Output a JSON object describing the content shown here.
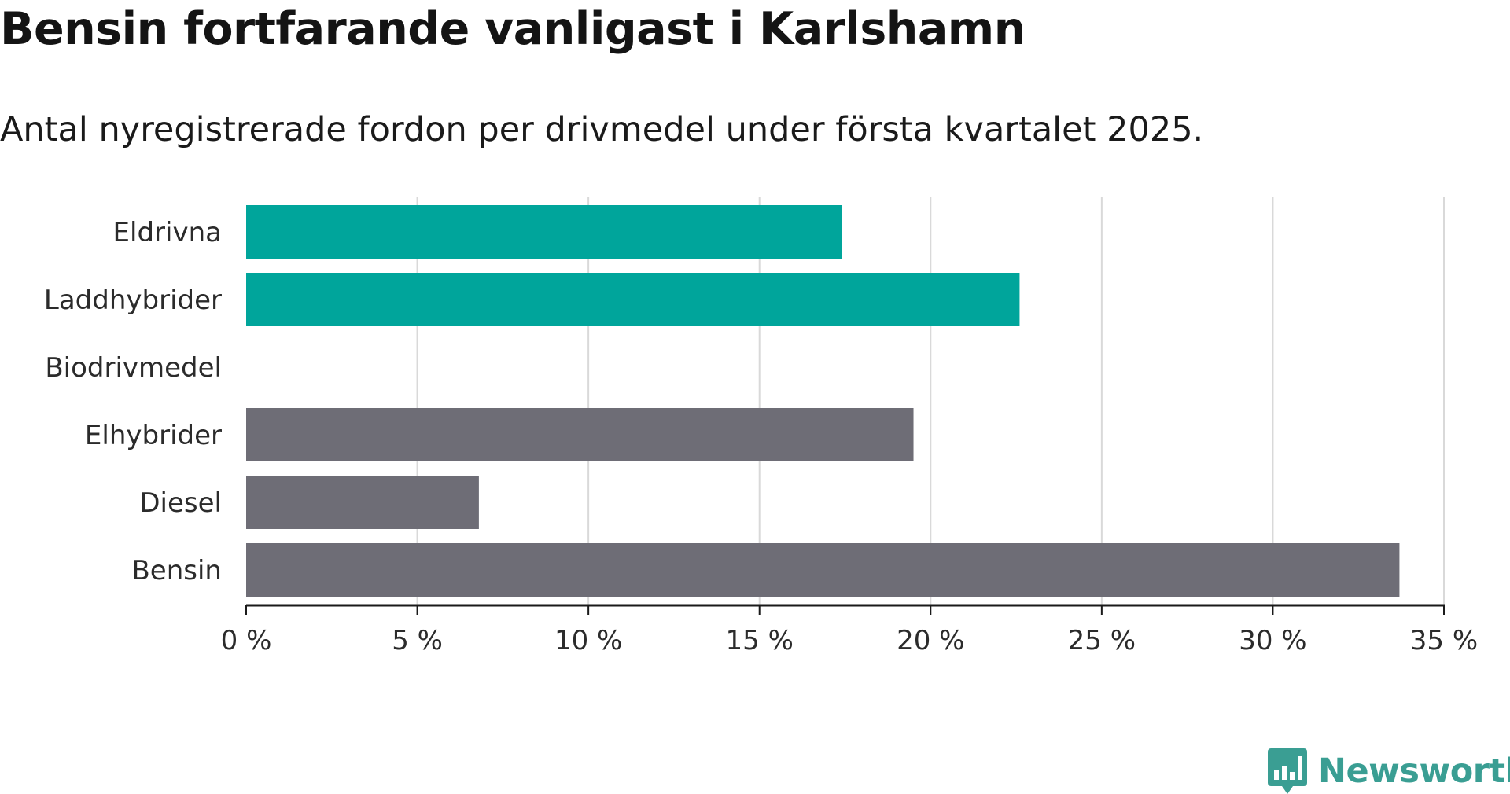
{
  "title": "Bensin fortfarande vanligast i Karlshamn",
  "subtitle": "Antal nyregistrerade fordon per drivmedel under första kvartalet 2025.",
  "colors": {
    "highlight": "#00a59b",
    "default": "#6e6d76",
    "grid": "#d9d9d9",
    "axis": "#1a1a1a",
    "brand": "#3a9e93"
  },
  "chart_data": {
    "type": "bar",
    "orientation": "horizontal",
    "categories": [
      "Eldrivna",
      "Laddhybrider",
      "Biodrivmedel",
      "Elhybrider",
      "Diesel",
      "Bensin"
    ],
    "values": [
      17.4,
      22.6,
      0,
      19.5,
      6.8,
      33.7
    ],
    "highlighted": [
      true,
      true,
      false,
      false,
      false,
      false
    ],
    "xlim": [
      0,
      35
    ],
    "xticks": [
      0,
      5,
      10,
      15,
      20,
      25,
      30,
      35
    ],
    "tick_suffix": " %",
    "grid": true
  },
  "logo": {
    "name": "Newsworthy",
    "icon": "bar-chart-speech-bubble-icon"
  }
}
